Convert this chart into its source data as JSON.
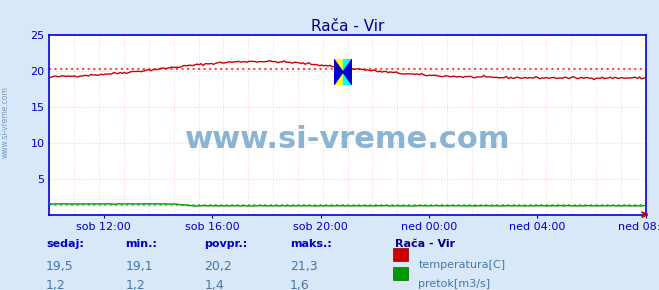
{
  "title": "Rača - Vir",
  "bg_color": "#d8e8f8",
  "plot_bg_color": "#ffffff",
  "grid_major_color": "#ffcccc",
  "grid_minor_color": "#ffe8e8",
  "axis_spine_color": "#0000dd",
  "tick_label_color": "#0000cc",
  "title_color": "#000088",
  "x_tick_labels": [
    "sob 12:00",
    "sob 16:00",
    "sob 20:00",
    "ned 00:00",
    "ned 04:00",
    "ned 08:00"
  ],
  "ylim": [
    0,
    25
  ],
  "yticks": [
    0,
    5,
    10,
    15,
    20,
    25
  ],
  "temp_avg": 20.2,
  "flow_avg": 1.4,
  "temp_color": "#cc0000",
  "flow_color": "#009900",
  "dotted_temp_color": "#ff4444",
  "dotted_flow_color": "#44dd44",
  "arrow_color": "#cc0000",
  "watermark": "www.si-vreme.com",
  "watermark_color": "#8ab4d4",
  "watermark_fontsize": 22,
  "sidebar_text": "www.si-vreme.com",
  "sidebar_color": "#7799bb",
  "legend_title": "Rača - Vir",
  "legend_label1": "temperatura[C]",
  "legend_label2": "pretok[m3/s]",
  "legend_title_color": "#000088",
  "legend_label_color": "#4477aa",
  "stats_header": [
    "sedaj:",
    "min.:",
    "povpr.:",
    "maks.:"
  ],
  "stats_header_color": "#0000cc",
  "stats_value_color": "#4477aa",
  "stats_temp": [
    "19,5",
    "19,1",
    "20,2",
    "21,3"
  ],
  "stats_flow": [
    "1,2",
    "1,2",
    "1,4",
    "1,6"
  ],
  "n_points": 288
}
